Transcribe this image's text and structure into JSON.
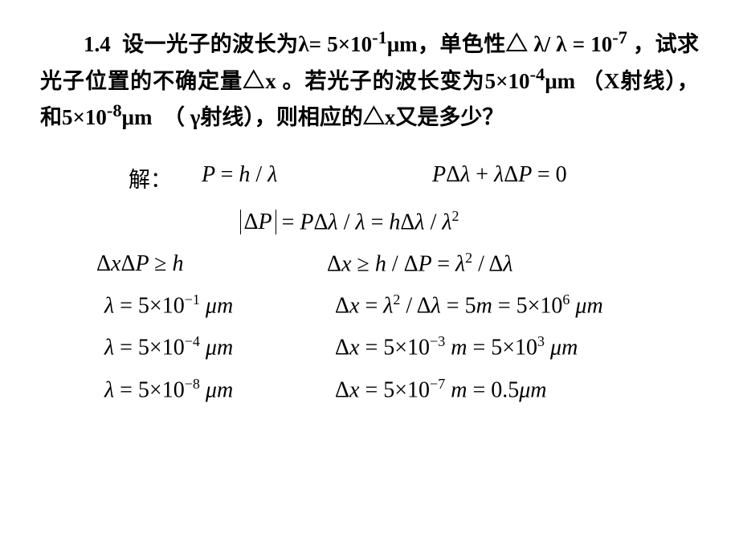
{
  "problem": {
    "number": "1.4",
    "text_p1": "设一光子的波长为",
    "lambda_eq": "λ= 5×10",
    "exp1": "-1",
    "unit1": "μm",
    "text_p2": "，单色性△ λ/ λ = 10",
    "exp2": "-7",
    "text_p3": " ，试求光子位置的不确定量△x 。若光子的波长变为5×10",
    "exp3": "-4",
    "unit2": "μm",
    "text_p4": "（X射线），和5×10",
    "exp4": "-8",
    "unit3": "μm",
    "text_p5": "（ γ射线），则相应的△x又是多少？"
  },
  "solution_label": "解：",
  "equations": {
    "e1_left": "P = h / λ",
    "e1_right": "PΔλ + λΔP = 0",
    "e2": "|ΔP| = PΔλ / λ = hΔλ / λ²",
    "e3_left": "ΔxΔP ≥ h",
    "e3_right": "Δx ≥ h / ΔP = λ² / Δλ",
    "case1_l": "λ = 5×10⁻¹ μm",
    "case1_r": "Δx = λ² / Δλ = 5m = 5×10⁶ μm",
    "case2_l": "λ = 5×10⁻⁴ μm",
    "case2_r": "Δx = 5×10⁻³ m = 5×10³ μm",
    "case3_l": "λ = 5×10⁻⁸ μm",
    "case3_r": "Δx = 5×10⁻⁷ m = 0.5μm"
  },
  "colors": {
    "text": "#000000",
    "background": "#ffffff"
  },
  "fontsize": {
    "body": 27,
    "equation": 28,
    "superscript": 18
  }
}
